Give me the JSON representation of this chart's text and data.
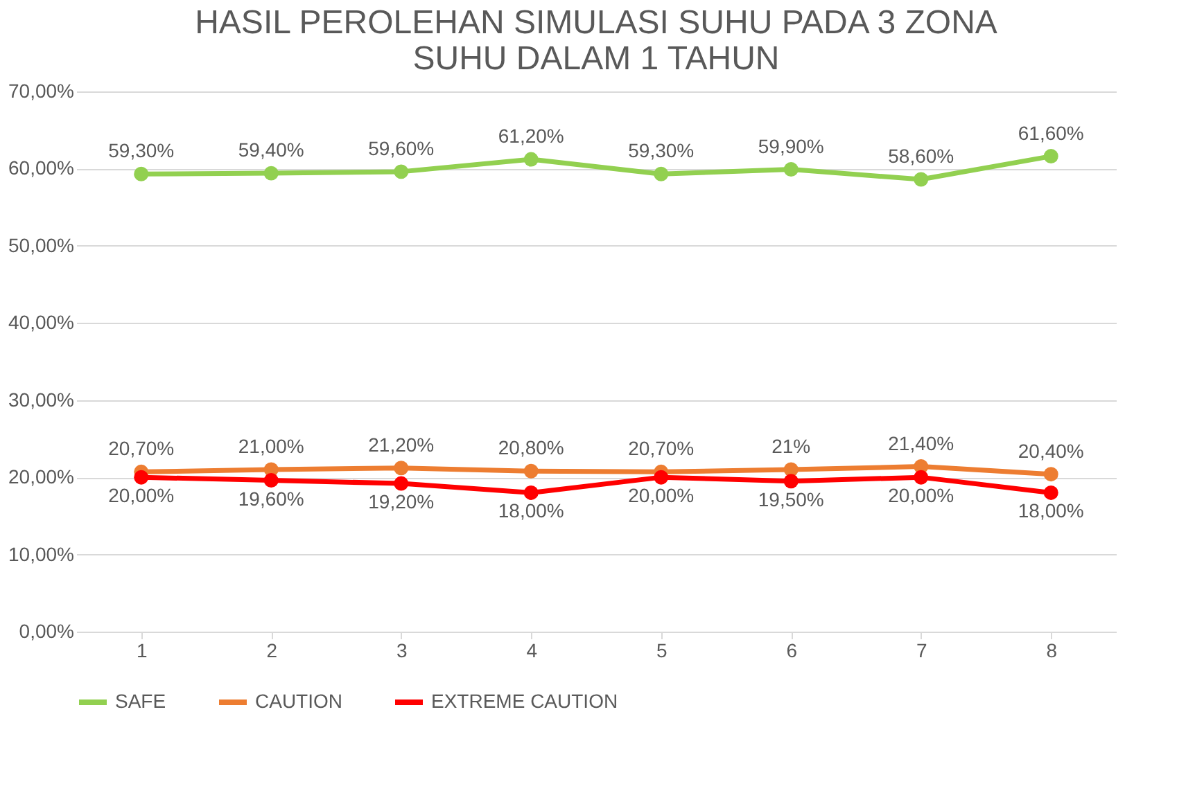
{
  "chart_data": {
    "type": "line",
    "title": "HASIL PEROLEHAN SIMULASI SUHU PADA 3 ZONA SUHU DALAM 1 TAHUN",
    "categories": [
      "1",
      "2",
      "3",
      "4",
      "5",
      "6",
      "7",
      "8"
    ],
    "series": [
      {
        "name": "SAFE",
        "color": "#92d050",
        "values": [
          59.3,
          59.4,
          59.6,
          61.2,
          59.3,
          59.9,
          58.6,
          61.6
        ],
        "value_labels": [
          "59,30%",
          "59,40%",
          "59,60%",
          "61,20%",
          "59,30%",
          "59,90%",
          "58,60%",
          "61,60%"
        ]
      },
      {
        "name": "CAUTION",
        "color": "#ed7d31",
        "values": [
          20.7,
          21.0,
          21.2,
          20.8,
          20.7,
          21,
          21.4,
          20.4
        ],
        "value_labels": [
          "20,70%",
          "21,00%",
          "21,20%",
          "20,80%",
          "20,70%",
          "21%",
          "21,40%",
          "20,40%"
        ]
      },
      {
        "name": "EXTREME CAUTION",
        "color": "#ff0000",
        "values": [
          20.0,
          19.6,
          19.2,
          18.0,
          20.0,
          19.5,
          20.0,
          18.0
        ],
        "value_labels": [
          "20,00%",
          "19,60%",
          "19,20%",
          "18,00%",
          "20,00%",
          "19,50%",
          "20,00%",
          "18,00%"
        ]
      }
    ],
    "ylim": [
      0,
      70
    ],
    "yticks": [
      {
        "value": 0,
        "label": "0,00%"
      },
      {
        "value": 10,
        "label": "10,00%"
      },
      {
        "value": 20,
        "label": "20,00%"
      },
      {
        "value": 30,
        "label": "30,00%"
      },
      {
        "value": 40,
        "label": "40,00%"
      },
      {
        "value": 50,
        "label": "50,00%"
      },
      {
        "value": 60,
        "label": "60,00%"
      },
      {
        "value": 70,
        "label": "70,00%"
      }
    ],
    "grid": "y",
    "legend": "bottom",
    "marker": "circle",
    "line_style": "solid"
  }
}
